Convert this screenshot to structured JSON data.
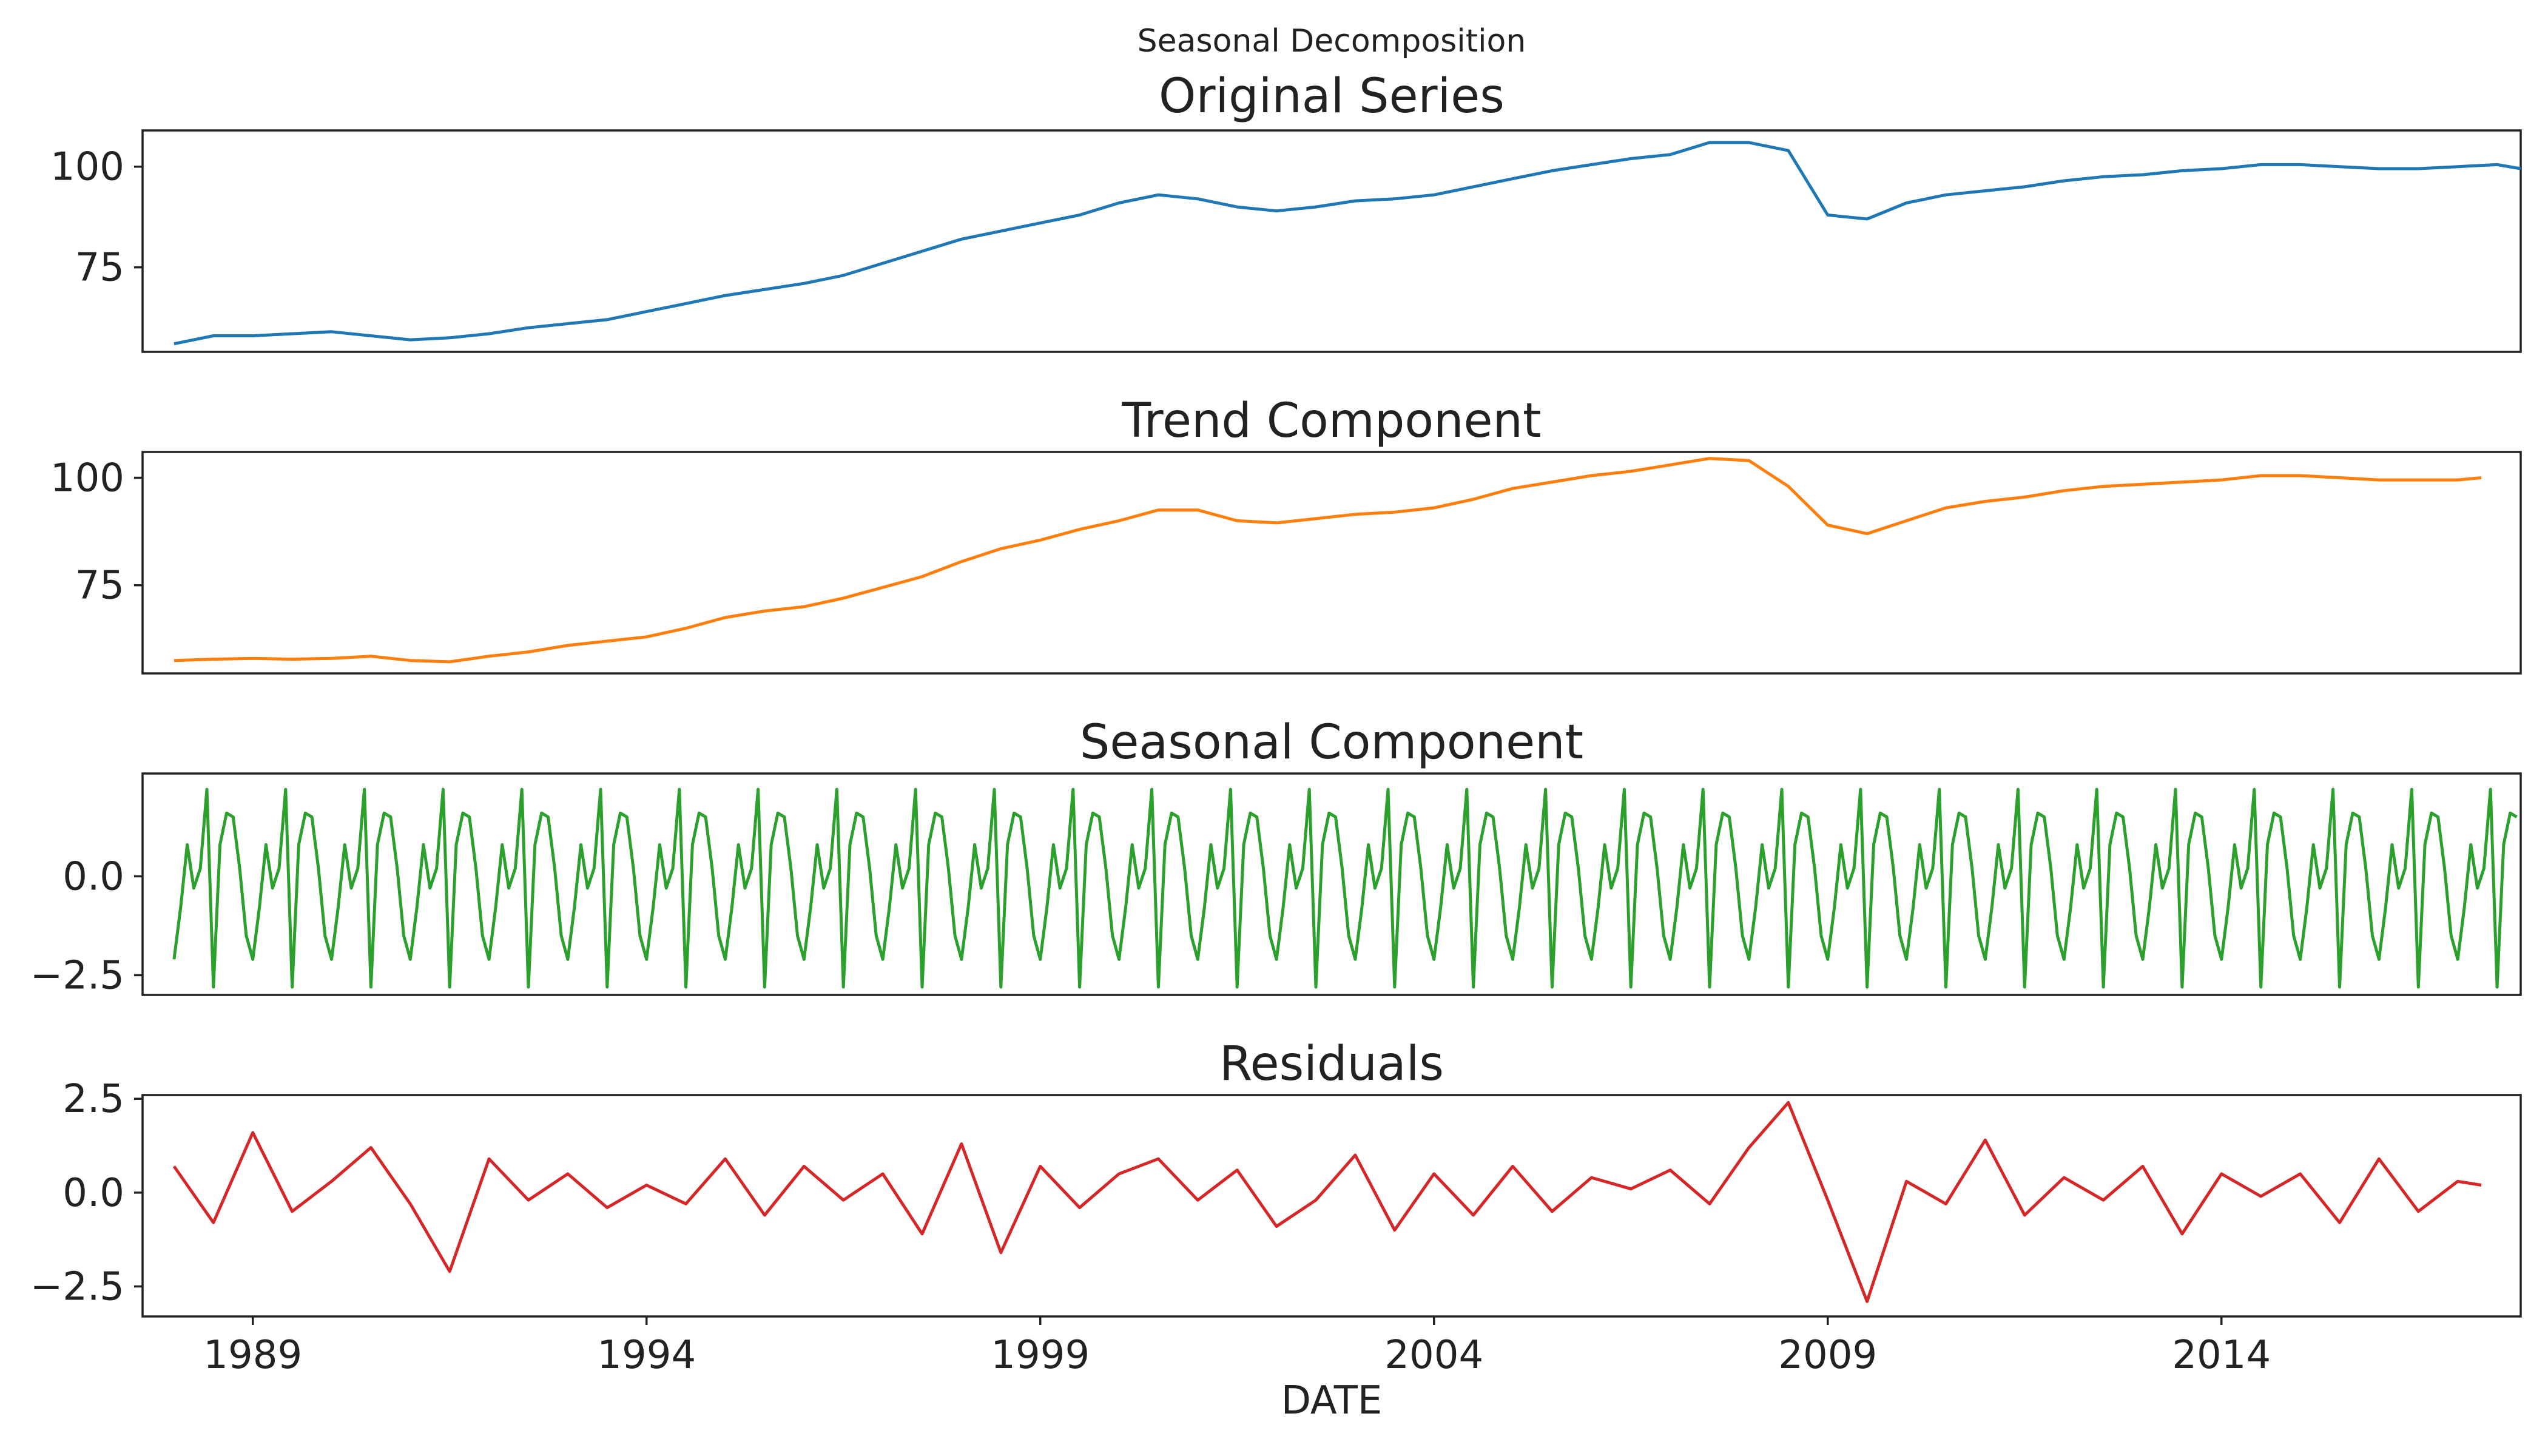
{
  "figure": {
    "suptitle": "Seasonal Decomposition",
    "xlabel": "DATE",
    "x_ticks": [
      1989,
      1994,
      1999,
      2004,
      2009,
      2014
    ],
    "x_range": [
      1987.6,
      2017.8
    ],
    "grid": false
  },
  "chart_data": [
    {
      "type": "line",
      "title": "Original Series",
      "xlabel": "",
      "ylabel": "",
      "color": "#1f77b4",
      "ylim": [
        54,
        109
      ],
      "yticks": [
        75,
        100
      ],
      "ytick_labels": [
        "75",
        "100"
      ],
      "series": [
        {
          "name": "",
          "x": [
            1988.0,
            1988.5,
            1989.0,
            1989.5,
            1990.0,
            1990.5,
            1991.0,
            1991.5,
            1992.0,
            1992.5,
            1993.0,
            1993.5,
            1994.0,
            1994.5,
            1995.0,
            1995.5,
            1996.0,
            1996.5,
            1997.0,
            1997.5,
            1998.0,
            1998.5,
            1999.0,
            1999.5,
            2000.0,
            2000.5,
            2001.0,
            2001.5,
            2002.0,
            2002.5,
            2003.0,
            2003.5,
            2004.0,
            2004.5,
            2005.0,
            2005.5,
            2006.0,
            2006.5,
            2007.0,
            2007.5,
            2008.0,
            2008.5,
            2009.0,
            2009.5,
            2010.0,
            2010.5,
            2011.0,
            2011.5,
            2012.0,
            2012.5,
            2013.0,
            2013.5,
            2014.0,
            2014.5,
            2015.0,
            2015.5,
            2016.0,
            2016.5,
            2017.0,
            2017.5,
            2017.8
          ],
          "values": [
            56,
            58,
            58,
            58.5,
            59,
            58,
            57,
            57.5,
            58.5,
            60,
            61,
            62,
            64,
            66,
            68,
            69.5,
            71,
            73,
            76,
            79,
            82,
            84,
            86,
            88,
            91,
            93,
            92,
            90,
            89,
            90,
            91.5,
            92,
            93,
            95,
            97,
            99,
            100.5,
            102,
            103,
            106,
            106,
            104,
            88,
            87,
            91,
            93,
            94,
            95,
            96.5,
            97.5,
            98,
            99,
            99.5,
            100.5,
            100.5,
            100,
            99.5,
            99.5,
            100,
            100.5,
            99.5
          ]
        }
      ]
    },
    {
      "type": "line",
      "title": "Trend Component",
      "xlabel": "",
      "ylabel": "",
      "color": "#ff7f0e",
      "ylim": [
        54.5,
        106
      ],
      "yticks": [
        75,
        100
      ],
      "ytick_labels": [
        "75",
        "100"
      ],
      "series": [
        {
          "name": "",
          "x": [
            1988.0,
            1988.5,
            1989.0,
            1989.5,
            1990.0,
            1990.5,
            1991.0,
            1991.5,
            1992.0,
            1992.5,
            1993.0,
            1993.5,
            1994.0,
            1994.5,
            1995.0,
            1995.5,
            1996.0,
            1996.5,
            1997.0,
            1997.5,
            1998.0,
            1998.5,
            1999.0,
            1999.5,
            2000.0,
            2000.5,
            2001.0,
            2001.5,
            2002.0,
            2002.5,
            2003.0,
            2003.5,
            2004.0,
            2004.5,
            2005.0,
            2005.5,
            2006.0,
            2006.5,
            2007.0,
            2007.5,
            2008.0,
            2008.5,
            2009.0,
            2009.5,
            2010.0,
            2010.5,
            2011.0,
            2011.5,
            2012.0,
            2012.5,
            2013.0,
            2013.5,
            2014.0,
            2014.5,
            2015.0,
            2015.5,
            2016.0,
            2016.5,
            2017.0,
            2017.3
          ],
          "values": [
            57.5,
            57.8,
            58,
            57.8,
            58,
            58.5,
            57.5,
            57.2,
            58.5,
            59.5,
            61,
            62,
            63,
            65,
            67.5,
            69,
            70,
            72,
            74.5,
            77,
            80.5,
            83.5,
            85.5,
            88,
            90,
            92.5,
            92.5,
            90,
            89.5,
            90.5,
            91.5,
            92,
            93,
            95,
            97.5,
            99,
            100.5,
            101.5,
            103,
            104.5,
            104,
            98,
            89,
            87,
            90,
            93,
            94.5,
            95.5,
            97,
            98,
            98.5,
            99,
            99.5,
            100.5,
            100.5,
            100,
            99.5,
            99.5,
            99.5,
            100
          ]
        }
      ]
    },
    {
      "type": "line",
      "title": "Seasonal Component",
      "xlabel": "",
      "ylabel": "",
      "color": "#2ca02c",
      "ylim": [
        -3.0,
        2.6
      ],
      "yticks": [
        -2.5,
        0.0
      ],
      "ytick_labels": [
        "−2.5",
        "0.0"
      ],
      "seasonal_pattern_monthly": [
        -2.1,
        -0.8,
        0.8,
        -0.3,
        0.2,
        2.2,
        -2.8,
        0.8,
        1.6,
        1.5,
        0.2,
        -1.5
      ],
      "series_start": 1988.0,
      "series_end": 2017.8
    },
    {
      "type": "line",
      "title": "Residuals",
      "xlabel": "",
      "ylabel": "",
      "color": "#d62728",
      "ylim": [
        -3.3,
        2.6
      ],
      "yticks": [
        -2.5,
        0.0,
        2.5
      ],
      "ytick_labels": [
        "−2.5",
        "0.0",
        "2.5"
      ],
      "series": [
        {
          "name": "",
          "x": [
            1988.0,
            1988.5,
            1989.0,
            1989.5,
            1990.0,
            1990.5,
            1991.0,
            1991.5,
            1992.0,
            1992.5,
            1993.0,
            1993.5,
            1994.0,
            1994.5,
            1995.0,
            1995.5,
            1996.0,
            1996.5,
            1997.0,
            1997.5,
            1998.0,
            1998.5,
            1999.0,
            1999.5,
            2000.0,
            2000.5,
            2001.0,
            2001.5,
            2002.0,
            2002.5,
            2003.0,
            2003.5,
            2004.0,
            2004.5,
            2005.0,
            2005.5,
            2006.0,
            2006.5,
            2007.0,
            2007.5,
            2008.0,
            2008.5,
            2009.0,
            2009.5,
            2010.0,
            2010.5,
            2011.0,
            2011.5,
            2012.0,
            2012.5,
            2013.0,
            2013.5,
            2014.0,
            2014.5,
            2015.0,
            2015.5,
            2016.0,
            2016.5,
            2017.0,
            2017.3
          ],
          "values": [
            0.7,
            -0.8,
            1.6,
            -0.5,
            0.3,
            1.2,
            -0.3,
            -2.1,
            0.9,
            -0.2,
            0.5,
            -0.4,
            0.2,
            -0.3,
            0.9,
            -0.6,
            0.7,
            -0.2,
            0.5,
            -1.1,
            1.3,
            -1.6,
            0.7,
            -0.4,
            0.5,
            0.9,
            -0.2,
            0.6,
            -0.9,
            -0.2,
            1.0,
            -1.0,
            0.5,
            -0.6,
            0.7,
            -0.5,
            0.4,
            0.1,
            0.6,
            -0.3,
            1.2,
            2.4,
            -0.2,
            -2.9,
            0.3,
            -0.3,
            1.4,
            -0.6,
            0.4,
            -0.2,
            0.7,
            -1.1,
            0.5,
            -0.1,
            0.5,
            -0.8,
            0.9,
            -0.5,
            0.3,
            0.2
          ]
        }
      ]
    }
  ]
}
